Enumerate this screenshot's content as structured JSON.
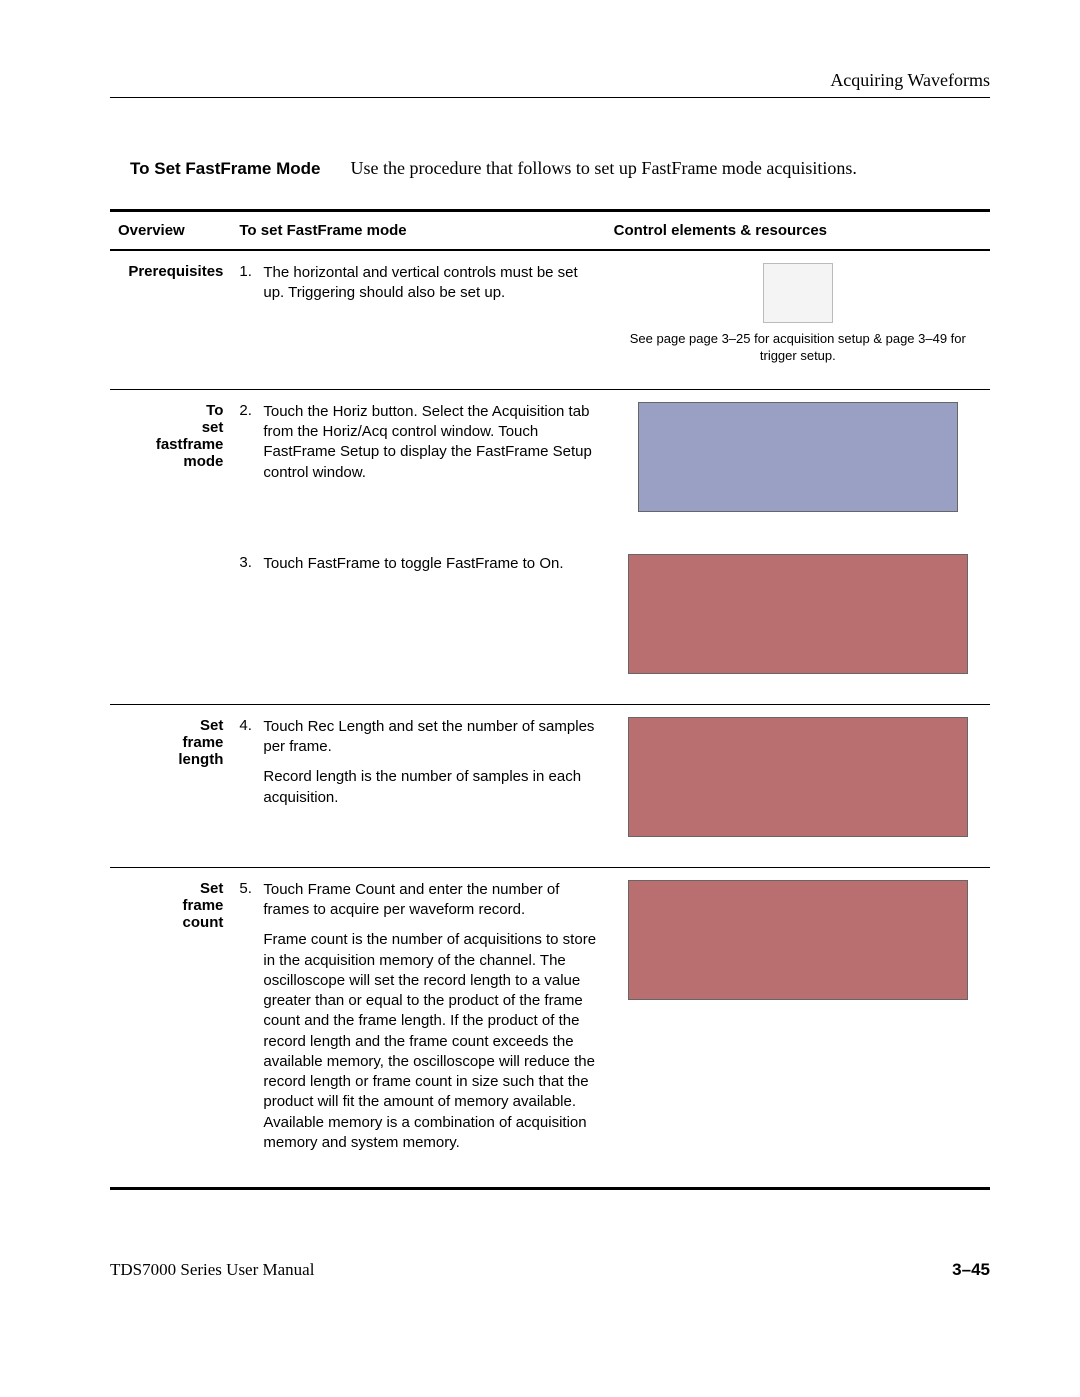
{
  "header": {
    "chapter_title": "Acquiring Waveforms"
  },
  "section": {
    "title_bold": "To Set FastFrame Mode",
    "title_desc": "Use the procedure that follows to set up FastFrame mode acquisitions."
  },
  "table": {
    "headers": {
      "overview": "Overview",
      "procedure": "To set FastFrame mode",
      "resources": "Control elements & resources"
    },
    "rows": [
      {
        "overview": "Prerequisites",
        "step_num": "1.",
        "paragraphs": [
          "The horizontal and vertical controls must be set up. Triggering should also be set up."
        ],
        "resource_caption": "See page page 3–25 for acquisition setup & page 3–49 for trigger setup.",
        "illus_class": "book"
      },
      {
        "overview": "To set fastframe mode",
        "step_num": "2.",
        "paragraphs": [
          "Touch the Horiz button. Select the Acquisition tab from the Horiz/Acq control window. Touch FastFrame Setup to display the FastFrame Setup control window."
        ],
        "resource_caption": "",
        "illus_class": "panel",
        "continues": true
      },
      {
        "overview": "",
        "step_num": "3.",
        "paragraphs": [
          "Touch FastFrame to toggle FastFrame to On."
        ],
        "resource_caption": "",
        "illus_class": "panel2"
      },
      {
        "overview": "Set frame length",
        "step_num": "4.",
        "paragraphs": [
          "Touch Rec Length and set the number of samples per frame.",
          "Record length is the number of samples in each acquisition."
        ],
        "resource_caption": "",
        "illus_class": "panel2"
      },
      {
        "overview": "Set frame count",
        "step_num": "5.",
        "paragraphs": [
          "Touch Frame Count and enter the number of frames to acquire per waveform record.",
          "Frame count is the number of acquisitions to store in the acquisition memory of the channel. The oscilloscope will set the record length to a value greater than or equal to the product of the frame count and the frame length. If the product of the record length and the frame count exceeds the available memory, the oscilloscope will reduce the record length or frame count in size such that the product will fit the amount of memory available. Available memory is a combination of acquisition memory and system memory."
        ],
        "resource_caption": "",
        "illus_class": "panel2"
      }
    ]
  },
  "footer": {
    "left": "TDS7000 Series User Manual",
    "right": "3–45"
  }
}
